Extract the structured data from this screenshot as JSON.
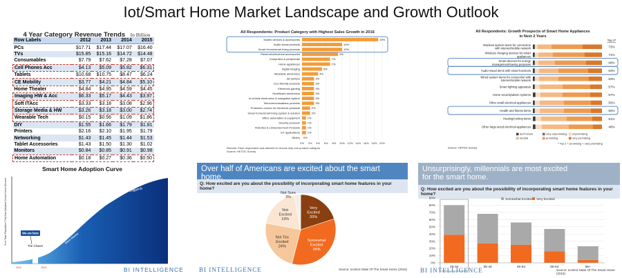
{
  "page_title": "Iot/Smart Home Market Landscape and Growth Outlook",
  "branding": {
    "bi": "BI INTELLIGENCE"
  },
  "revenue_table": {
    "title": "4 Year Category Revenue Trends",
    "unit": "In Billion",
    "headers": [
      "Row Labels",
      "2012",
      "2013",
      "2014",
      "2015"
    ],
    "rows": [
      [
        "PCs",
        "$17.71",
        "$17.44",
        "$17.07",
        "$16.40"
      ],
      [
        "TVs",
        "$15.85",
        "$15.16",
        "$14.72",
        "$14.48"
      ],
      [
        "Consumables",
        "$7.79",
        "$7.62",
        "$7.28",
        "$7.07"
      ],
      [
        "Cell Phones Acc",
        "$4.13",
        "$5.09",
        "$5.82",
        "$6.31"
      ],
      [
        "Tablets",
        "$10.68",
        "$10.75",
        "$8.47",
        "$6.24"
      ],
      [
        "CE Mobility",
        "$3.77",
        "$4.21",
        "$4.84",
        "$5.10"
      ],
      [
        "Home Theater",
        "$4.84",
        "$4.95",
        "$4.59",
        "$4.45"
      ],
      [
        "Imaging HW & Acc",
        "$6.33",
        "$5.17",
        "$4.43",
        "$3.97"
      ],
      [
        "Soft ITAcc",
        "$3.33",
        "$3.18",
        "$3.08",
        "$2.96"
      ],
      [
        "Storage Media & HW",
        "$3.26",
        "$3.18",
        "$3.00",
        "$2.74"
      ],
      [
        "Wearable Tech",
        "$0.15",
        "$0.56",
        "$1.09",
        "$1.86"
      ],
      [
        "DIY",
        "$1.55",
        "$1.66",
        "$1.79",
        "$1.81"
      ],
      [
        "Printers",
        "$2.16",
        "$2.10",
        "$1.95",
        "$1.79"
      ],
      [
        "Networking",
        "$1.43",
        "$1.45",
        "$1.44",
        "$1.53"
      ],
      [
        "Tablet Accessories",
        "$1.43",
        "$1.50",
        "$1.30",
        "$1.02"
      ],
      [
        "Monitors",
        "$0.84",
        "$0.85",
        "$0.91",
        "$0.98"
      ],
      [
        "Home Automation",
        "$0.18",
        "$0.27",
        "$0.36",
        "$0.50"
      ]
    ],
    "highlighted_rows": [
      3,
      5,
      7,
      8,
      9,
      10,
      16
    ]
  },
  "chart_data": [
    {
      "id": "sales-growth",
      "type": "bar",
      "orientation": "horizontal",
      "title": "All Respondents: Product Category with Highest Sales Growth in 2016",
      "categories": [
        "Mobile devices & accessories",
        "Audio visual products",
        "Smart Home/smart living products",
        "Electronic/electrical accessories",
        "Computers & peripherals",
        "Home appliances",
        "Digital imaging",
        "Wearable electronics",
        "3D printers",
        "Eco-friendly products",
        "Electronic gaming",
        "Healthcare electronics",
        "In-vehicle electronics & navigation system",
        "Telecommunications products",
        "Protection covers for electronic products",
        "Smart home/smart living system & solution",
        "Office automation & equipment",
        "Security products",
        "Robotics & unmanned tech Products",
        "IoT applications",
        "Others"
      ],
      "values": [
        19,
        10,
        10,
        9,
        7,
        7,
        5,
        4,
        3,
        3,
        3,
        3,
        3,
        3,
        2,
        2,
        1,
        1,
        1,
        1,
        0
      ],
      "value_labels": [
        "19%",
        "10%",
        "10%",
        "9%",
        "7%",
        "7%",
        "5%",
        "4%",
        "3%",
        "3%",
        "3%",
        "3%",
        "3%",
        "3%",
        "2%",
        "2%",
        "1%",
        "1%",
        "1%",
        "1%",
        "0%"
      ],
      "ticks": [
        "0%",
        "2%",
        "4%",
        "6%",
        "8%",
        "10%",
        "12%",
        "14%",
        "16%",
        "18%",
        "20%"
      ],
      "xlim": [
        0,
        20
      ],
      "highlighted": [
        0,
        1,
        2
      ],
      "color": "#f29c38",
      "remark": "Remark: Each respondent was allowed to choose only one product category",
      "source": "Source: HKTDC Survey"
    },
    {
      "id": "growth-prospects",
      "type": "bar",
      "orientation": "horizontal-stacked",
      "title": "All Respondents: Growth Prospects of Smart Home Appliances in Next 2 Years",
      "categories": [
        "Wireless system items for connection with internet/mobile network",
        "Wireless charging devices for smart appliances",
        "Smart devices for energy management/saving purposes",
        "Audio-visual items with smart functions",
        "Wired system items for connection with internet/mobile network",
        "Smart lighting apparatus",
        "Home security/alarm systems",
        "Other small electrical appliances",
        "Health and fitness items",
        "Heating/cooling items",
        "Other large-sized electrical appliances"
      ],
      "top2": [
        "73%",
        "71%",
        "68%",
        "63%",
        "63%",
        "57%",
        "57%",
        "55%",
        "55%",
        "51%",
        "48%"
      ],
      "top2_label": "Top 2*",
      "highlighted": [
        2,
        3,
        8
      ],
      "series": [
        {
          "name": "don't know",
          "color": "#3d3d3d",
          "values": [
            2,
            2,
            2,
            2,
            2,
            2,
            3,
            2,
            2,
            3,
            3
          ]
        },
        {
          "name": "very unpromising",
          "color": "#6b6b6b",
          "values": [
            1,
            1,
            1,
            1,
            1,
            1,
            1,
            1,
            1,
            1,
            1
          ]
        },
        {
          "name": "unpromising",
          "color": "#f7dcc0",
          "values": [
            4,
            5,
            5,
            6,
            6,
            7,
            7,
            7,
            7,
            8,
            9
          ]
        },
        {
          "name": "neutral",
          "color": "#f6b883",
          "values": [
            20,
            21,
            24,
            28,
            28,
            33,
            32,
            35,
            35,
            37,
            39
          ]
        },
        {
          "name": "promising",
          "color": "#ee9a4f",
          "values": [
            45,
            46,
            45,
            43,
            44,
            40,
            40,
            39,
            39,
            37,
            35
          ]
        },
        {
          "name": "very promising",
          "color": "#d9782b",
          "values": [
            28,
            25,
            23,
            20,
            19,
            17,
            17,
            16,
            16,
            14,
            13
          ]
        }
      ],
      "footnote": "* Top 2 = promising + very promising",
      "source": "Source: HKTDC Survey"
    },
    {
      "id": "adoption-curve",
      "type": "area",
      "title": "Smart Home Adoption Curve",
      "ylabel": "% of Total Population That Has Adopted Smart Home Devices",
      "x_ticks": [
        "2010",
        "2015"
      ],
      "stages": [
        "Early Adopters",
        "Mass Market",
        "Laggards"
      ],
      "annotations": [
        "We are here",
        "The Chasm"
      ]
    },
    {
      "id": "excitement-pie",
      "type": "pie",
      "question": "Q: How excited are you about the possibility of incorporating smart home features in your home?",
      "slices": [
        {
          "label": "Very Excited",
          "value": 20,
          "text": "20%",
          "color": "#8a3f10"
        },
        {
          "label": "Somewhat Excited",
          "value": 34,
          "text": "34%",
          "color": "#f26a1f"
        },
        {
          "label": "Not Too Excited",
          "value": 24,
          "text": "24%",
          "color": "#f6c79a"
        },
        {
          "label": "Not Excited",
          "value": 19,
          "text": "19%",
          "color": "#fae6d3"
        },
        {
          "label": "Not Sure",
          "value": 3,
          "text": "3%",
          "color": "#f2efe9"
        }
      ],
      "source": "Source: Icontrol State Of The Smart Home (2015)"
    },
    {
      "id": "millennials-bar",
      "type": "bar",
      "stacked": true,
      "question": "Q: How excited are you about the possibility of incorporating smart home features in your home?",
      "categories": [
        "25-34",
        "35-44",
        "45-54",
        "55-64",
        "65+"
      ],
      "series": [
        {
          "name": "Very Excited",
          "color": "#f26a1f",
          "values": [
            39,
            27,
            25,
            16,
            4
          ]
        },
        {
          "name": "Somewhat Excited",
          "color": "#a9a9a9",
          "values": [
            41,
            41,
            31,
            31,
            19
          ]
        }
      ],
      "ylim": [
        0,
        90
      ],
      "y_ticks": [
        "0%",
        "10%",
        "20%",
        "30%",
        "40%",
        "50%",
        "60%",
        "70%",
        "80%",
        "90%"
      ],
      "highlighted": 0,
      "source": "Source: Icontrol State Of The Smart Home (2015)"
    }
  ],
  "banners": {
    "middle": "Over half of Americans are excited about the smart home.",
    "right_line1": "Unsurprisingly, millennials are most excited",
    "right_line2": "for the smart home."
  }
}
